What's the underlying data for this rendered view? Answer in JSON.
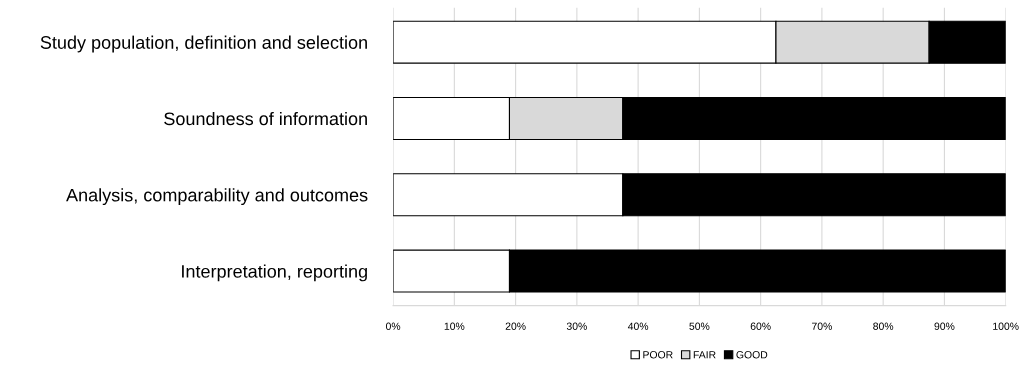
{
  "chart_data": {
    "type": "bar",
    "orientation": "horizontal",
    "stacked": true,
    "categories": [
      "Study population, definition and selection",
      "Soundness of information",
      "Analysis, comparability and outcomes",
      "Interpretation, reporting"
    ],
    "series": [
      {
        "name": "POOR",
        "color": "#ffffff",
        "values": [
          62.5,
          19,
          37.5,
          19
        ]
      },
      {
        "name": "FAIR",
        "color": "#d9d9d9",
        "values": [
          25,
          18.5,
          0,
          0
        ]
      },
      {
        "name": "GOOD",
        "color": "#000000",
        "values": [
          12.5,
          62.5,
          62.5,
          81
        ]
      }
    ],
    "xlim": [
      0,
      100
    ],
    "xticks": [
      {
        "value": 0,
        "label": "0%"
      },
      {
        "value": 10,
        "label": "10%"
      },
      {
        "value": 20,
        "label": "20%"
      },
      {
        "value": 30,
        "label": "30%"
      },
      {
        "value": 40,
        "label": "40%"
      },
      {
        "value": 50,
        "label": "50%"
      },
      {
        "value": 60,
        "label": "60%"
      },
      {
        "value": 70,
        "label": "70%"
      },
      {
        "value": 80,
        "label": "80%"
      },
      {
        "value": 90,
        "label": "90%"
      },
      {
        "value": 100,
        "label": "100%"
      }
    ],
    "grid": "x",
    "legend": "bottom"
  }
}
